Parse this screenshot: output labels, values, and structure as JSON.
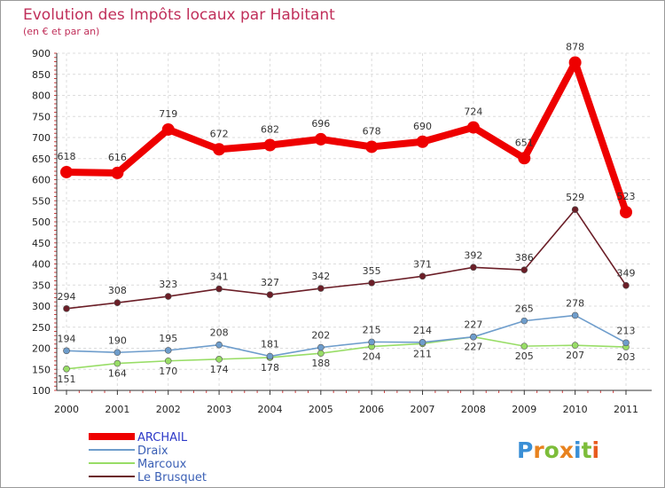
{
  "chart_data": {
    "type": "line",
    "title": "Evolution des Impôts locaux par Habitant",
    "subtitle": "(en € et par an)",
    "xlabel": "",
    "ylabel": "",
    "ylim": [
      100,
      900
    ],
    "yticks": [
      100,
      150,
      200,
      250,
      300,
      350,
      400,
      450,
      500,
      550,
      600,
      650,
      700,
      750,
      800,
      850,
      900
    ],
    "categories": [
      "2000",
      "2001",
      "2002",
      "2003",
      "2004",
      "2005",
      "2006",
      "2007",
      "2008",
      "2009",
      "2010",
      "2011"
    ],
    "grid": true,
    "legend_position": "bottom-left",
    "series": [
      {
        "name": "ARCHAIL",
        "color": "#ee0000",
        "values": [
          618,
          616,
          719,
          672,
          682,
          696,
          678,
          690,
          724,
          651,
          878,
          523
        ]
      },
      {
        "name": "Draix",
        "color": "#6e9dcc",
        "values": [
          194,
          190,
          195,
          208,
          181,
          202,
          215,
          214,
          227,
          265,
          278,
          213
        ]
      },
      {
        "name": "Marcoux",
        "color": "#98dd66",
        "values": [
          151,
          164,
          170,
          174,
          178,
          188,
          204,
          211,
          227,
          205,
          207,
          203
        ]
      },
      {
        "name": "Le Brusquet",
        "color": "#6b1e27",
        "values": [
          294,
          308,
          323,
          341,
          327,
          342,
          355,
          371,
          392,
          386,
          529,
          349
        ]
      }
    ]
  },
  "watermark": "Proxiti"
}
